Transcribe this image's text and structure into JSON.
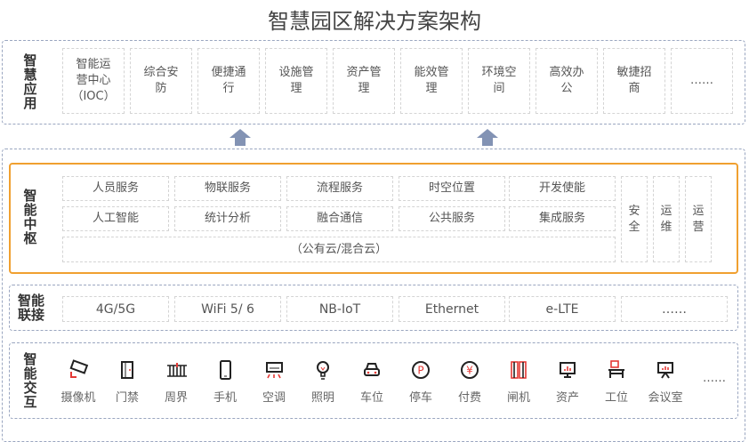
{
  "title": "智慧园区解决方案架构",
  "apps": {
    "label": "智慧应用",
    "items": [
      "智能运营中心（IOC）",
      "综合安防",
      "便捷通行",
      "设施管理",
      "资产管理",
      "能效管理",
      "环境空间",
      "高效办公",
      "敏捷招商",
      "……"
    ]
  },
  "hub": {
    "label": "智能中枢",
    "rows": [
      [
        "人员服务",
        "物联服务",
        "流程服务",
        "时空位置",
        "开发使能"
      ],
      [
        "人工智能",
        "统计分析",
        "融合通信",
        "公共服务",
        "集成服务"
      ]
    ],
    "cloud": "（公有云/混合云）",
    "side": [
      "安全",
      "运维",
      "运营"
    ],
    "accent": "#f0a030"
  },
  "connect": {
    "label": "智能联接",
    "items": [
      "4G/5G",
      "WiFi 5/ 6",
      "NB-IoT",
      "Ethernet",
      "e-LTE",
      "……"
    ]
  },
  "interact": {
    "label": "智能交互",
    "items": [
      {
        "label": "摄像机",
        "icon": "camera-icon"
      },
      {
        "label": "门禁",
        "icon": "door-icon"
      },
      {
        "label": "周界",
        "icon": "fence-icon"
      },
      {
        "label": "手机",
        "icon": "phone-icon"
      },
      {
        "label": "空调",
        "icon": "air-conditioner-icon"
      },
      {
        "label": "照明",
        "icon": "bulb-icon"
      },
      {
        "label": "车位",
        "icon": "car-icon"
      },
      {
        "label": "停车",
        "icon": "parking-icon"
      },
      {
        "label": "付费",
        "icon": "yuan-icon"
      },
      {
        "label": "闸机",
        "icon": "gate-icon"
      },
      {
        "label": "资产",
        "icon": "monitor-icon"
      },
      {
        "label": "工位",
        "icon": "desk-icon"
      },
      {
        "label": "会议室",
        "icon": "presentation-icon"
      }
    ],
    "more": "……"
  }
}
